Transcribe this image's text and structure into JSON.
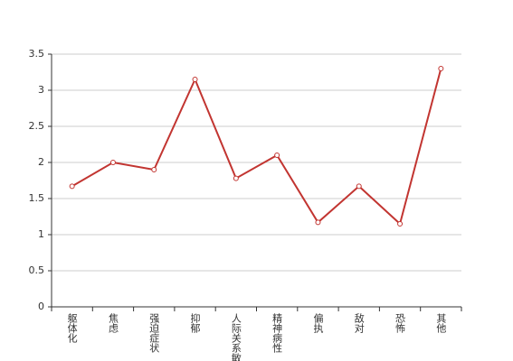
{
  "chart_data": {
    "type": "line",
    "categories": [
      "躯体化",
      "焦虑",
      "强迫症状",
      "抑郁",
      "人际关系敏感",
      "精神病性",
      "偏执",
      "敌对",
      "恐怖",
      "其他"
    ],
    "series": [
      {
        "color": "#c23531",
        "values": [
          1.67,
          2.0,
          1.9,
          3.15,
          1.78,
          2.1,
          1.17,
          1.67,
          1.15,
          3.3
        ]
      }
    ],
    "ylim": [
      0,
      3.5
    ],
    "yticks": [
      0,
      0.5,
      1,
      1.5,
      2,
      2.5,
      3,
      3.5
    ],
    "grid": true
  }
}
